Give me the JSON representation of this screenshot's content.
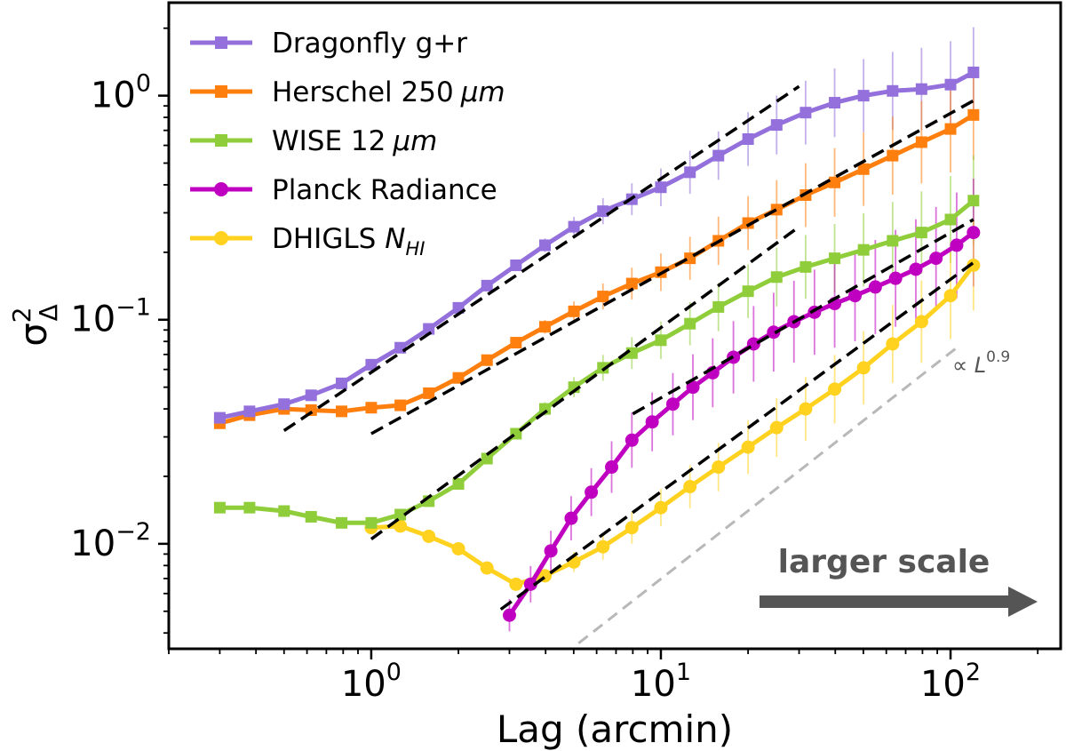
{
  "chart_data": {
    "type": "line",
    "title": "",
    "xlabel": "Lag (arcmin)",
    "ylabel": "σ²_Δ",
    "xscale": "log",
    "yscale": "log",
    "xlim": [
      0.2,
      240
    ],
    "ylim": [
      0.0034,
      2.6
    ],
    "xticks": [
      {
        "value": 1,
        "base": "10",
        "exp": "0"
      },
      {
        "value": 10,
        "base": "10",
        "exp": "1"
      },
      {
        "value": 100,
        "base": "10",
        "exp": "2"
      }
    ],
    "yticks": [
      {
        "value": 0.01,
        "base": "10",
        "exp": "−2"
      },
      {
        "value": 0.1,
        "base": "10",
        "exp": "−1"
      },
      {
        "value": 1,
        "base": "10",
        "exp": "0"
      }
    ],
    "legend_position": "top-left",
    "series": [
      {
        "name": "Dragonfly g+r",
        "label_main": "Dragonfly g+r",
        "label_unit": "",
        "color": "#9370db",
        "marker": "square",
        "x": [
          0.3,
          0.38,
          0.5,
          0.62,
          0.79,
          1.0,
          1.26,
          1.58,
          2.0,
          2.51,
          3.16,
          3.98,
          5.01,
          6.31,
          7.94,
          10.0,
          12.6,
          15.8,
          20.0,
          25.1,
          31.6,
          39.8,
          50.1,
          63.1,
          79.4,
          100,
          120
        ],
        "y": [
          0.0365,
          0.039,
          0.042,
          0.046,
          0.052,
          0.063,
          0.075,
          0.091,
          0.113,
          0.142,
          0.175,
          0.215,
          0.26,
          0.305,
          0.345,
          0.39,
          0.455,
          0.54,
          0.64,
          0.74,
          0.84,
          0.93,
          1.0,
          1.05,
          1.07,
          1.12,
          1.27
        ]
      },
      {
        "name": "Herschel 250 μm",
        "label_main": "Herschel 250",
        "label_unit": "μm",
        "color": "#ff7f0e",
        "marker": "square",
        "x": [
          0.3,
          0.38,
          0.5,
          0.62,
          0.79,
          1.0,
          1.26,
          1.58,
          2.0,
          2.51,
          3.16,
          3.98,
          5.01,
          6.31,
          7.94,
          10.0,
          12.6,
          15.8,
          20.0,
          25.1,
          31.6,
          39.8,
          50.1,
          63.1,
          79.4,
          100,
          120
        ],
        "y": [
          0.0345,
          0.0375,
          0.04,
          0.0395,
          0.039,
          0.0405,
          0.0415,
          0.047,
          0.055,
          0.066,
          0.079,
          0.093,
          0.109,
          0.127,
          0.145,
          0.163,
          0.188,
          0.225,
          0.27,
          0.31,
          0.36,
          0.41,
          0.47,
          0.54,
          0.62,
          0.71,
          0.82
        ]
      },
      {
        "name": "WISE 12 μm",
        "label_main": "WISE 12",
        "label_unit": "μm",
        "color": "#8fce3a",
        "marker": "square",
        "x": [
          0.3,
          0.38,
          0.5,
          0.62,
          0.79,
          1.0,
          1.26,
          1.58,
          2.0,
          2.51,
          3.16,
          3.98,
          5.01,
          6.31,
          7.94,
          10.0,
          12.6,
          15.8,
          20.0,
          25.1,
          31.6,
          39.8,
          50.1,
          63.1,
          79.4,
          100,
          120
        ],
        "y": [
          0.0145,
          0.0145,
          0.014,
          0.0132,
          0.0124,
          0.0124,
          0.0135,
          0.0155,
          0.0185,
          0.024,
          0.031,
          0.04,
          0.05,
          0.061,
          0.071,
          0.081,
          0.096,
          0.114,
          0.134,
          0.155,
          0.172,
          0.188,
          0.205,
          0.225,
          0.245,
          0.28,
          0.34
        ]
      },
      {
        "name": "Planck Radiance",
        "label_main": "Planck Radiance",
        "label_unit": "",
        "color": "#c000c0",
        "marker": "circle",
        "x": [
          3.0,
          3.55,
          4.17,
          4.9,
          5.75,
          6.76,
          7.94,
          9.33,
          11.0,
          12.9,
          15.1,
          17.8,
          20.9,
          24.5,
          28.8,
          33.9,
          39.8,
          46.8,
          55.0,
          64.6,
          75.9,
          89.1,
          105,
          120
        ],
        "y": [
          0.0048,
          0.0066,
          0.0093,
          0.013,
          0.017,
          0.022,
          0.029,
          0.035,
          0.042,
          0.05,
          0.058,
          0.068,
          0.078,
          0.088,
          0.098,
          0.108,
          0.118,
          0.128,
          0.14,
          0.153,
          0.168,
          0.188,
          0.215,
          0.245
        ]
      },
      {
        "name": "DHIGLS N_HI",
        "label_main": "DHIGLS",
        "label_unit": "N",
        "color": "#ffd21f",
        "marker": "circle",
        "x": [
          1.0,
          1.26,
          1.58,
          2.0,
          2.51,
          3.16,
          3.98,
          5.01,
          6.31,
          7.94,
          10.0,
          12.6,
          15.8,
          20.0,
          25.1,
          31.6,
          39.8,
          50.1,
          63.1,
          79.4,
          100,
          120
        ],
        "y": [
          0.0118,
          0.012,
          0.0108,
          0.0095,
          0.0078,
          0.0066,
          0.0072,
          0.0083,
          0.0097,
          0.0118,
          0.0145,
          0.018,
          0.022,
          0.027,
          0.033,
          0.04,
          0.049,
          0.061,
          0.078,
          0.098,
          0.128,
          0.175
        ]
      }
    ],
    "fit_lines": [
      {
        "name": "fit-dragonfly",
        "x": [
          0.5,
          30
        ],
        "y": [
          0.032,
          1.1
        ]
      },
      {
        "name": "fit-herschel",
        "x": [
          1.0,
          120
        ],
        "y": [
          0.031,
          0.95
        ]
      },
      {
        "name": "fit-wise",
        "x": [
          1.0,
          30
        ],
        "y": [
          0.0105,
          0.26
        ]
      },
      {
        "name": "fit-planck",
        "x": [
          8.0,
          120
        ],
        "y": [
          0.038,
          0.28
        ]
      },
      {
        "name": "fit-dhigls",
        "x": [
          2.8,
          120
        ],
        "y": [
          0.0051,
          0.18
        ]
      }
    ],
    "reference_line": {
      "x": [
        5.2,
        105
      ],
      "y": [
        0.0036,
        0.075
      ],
      "label_prefix": "∝ ",
      "label_var": "L",
      "label_exp": "0.9"
    },
    "annotation": {
      "text": "larger scale",
      "direction": "right"
    }
  }
}
